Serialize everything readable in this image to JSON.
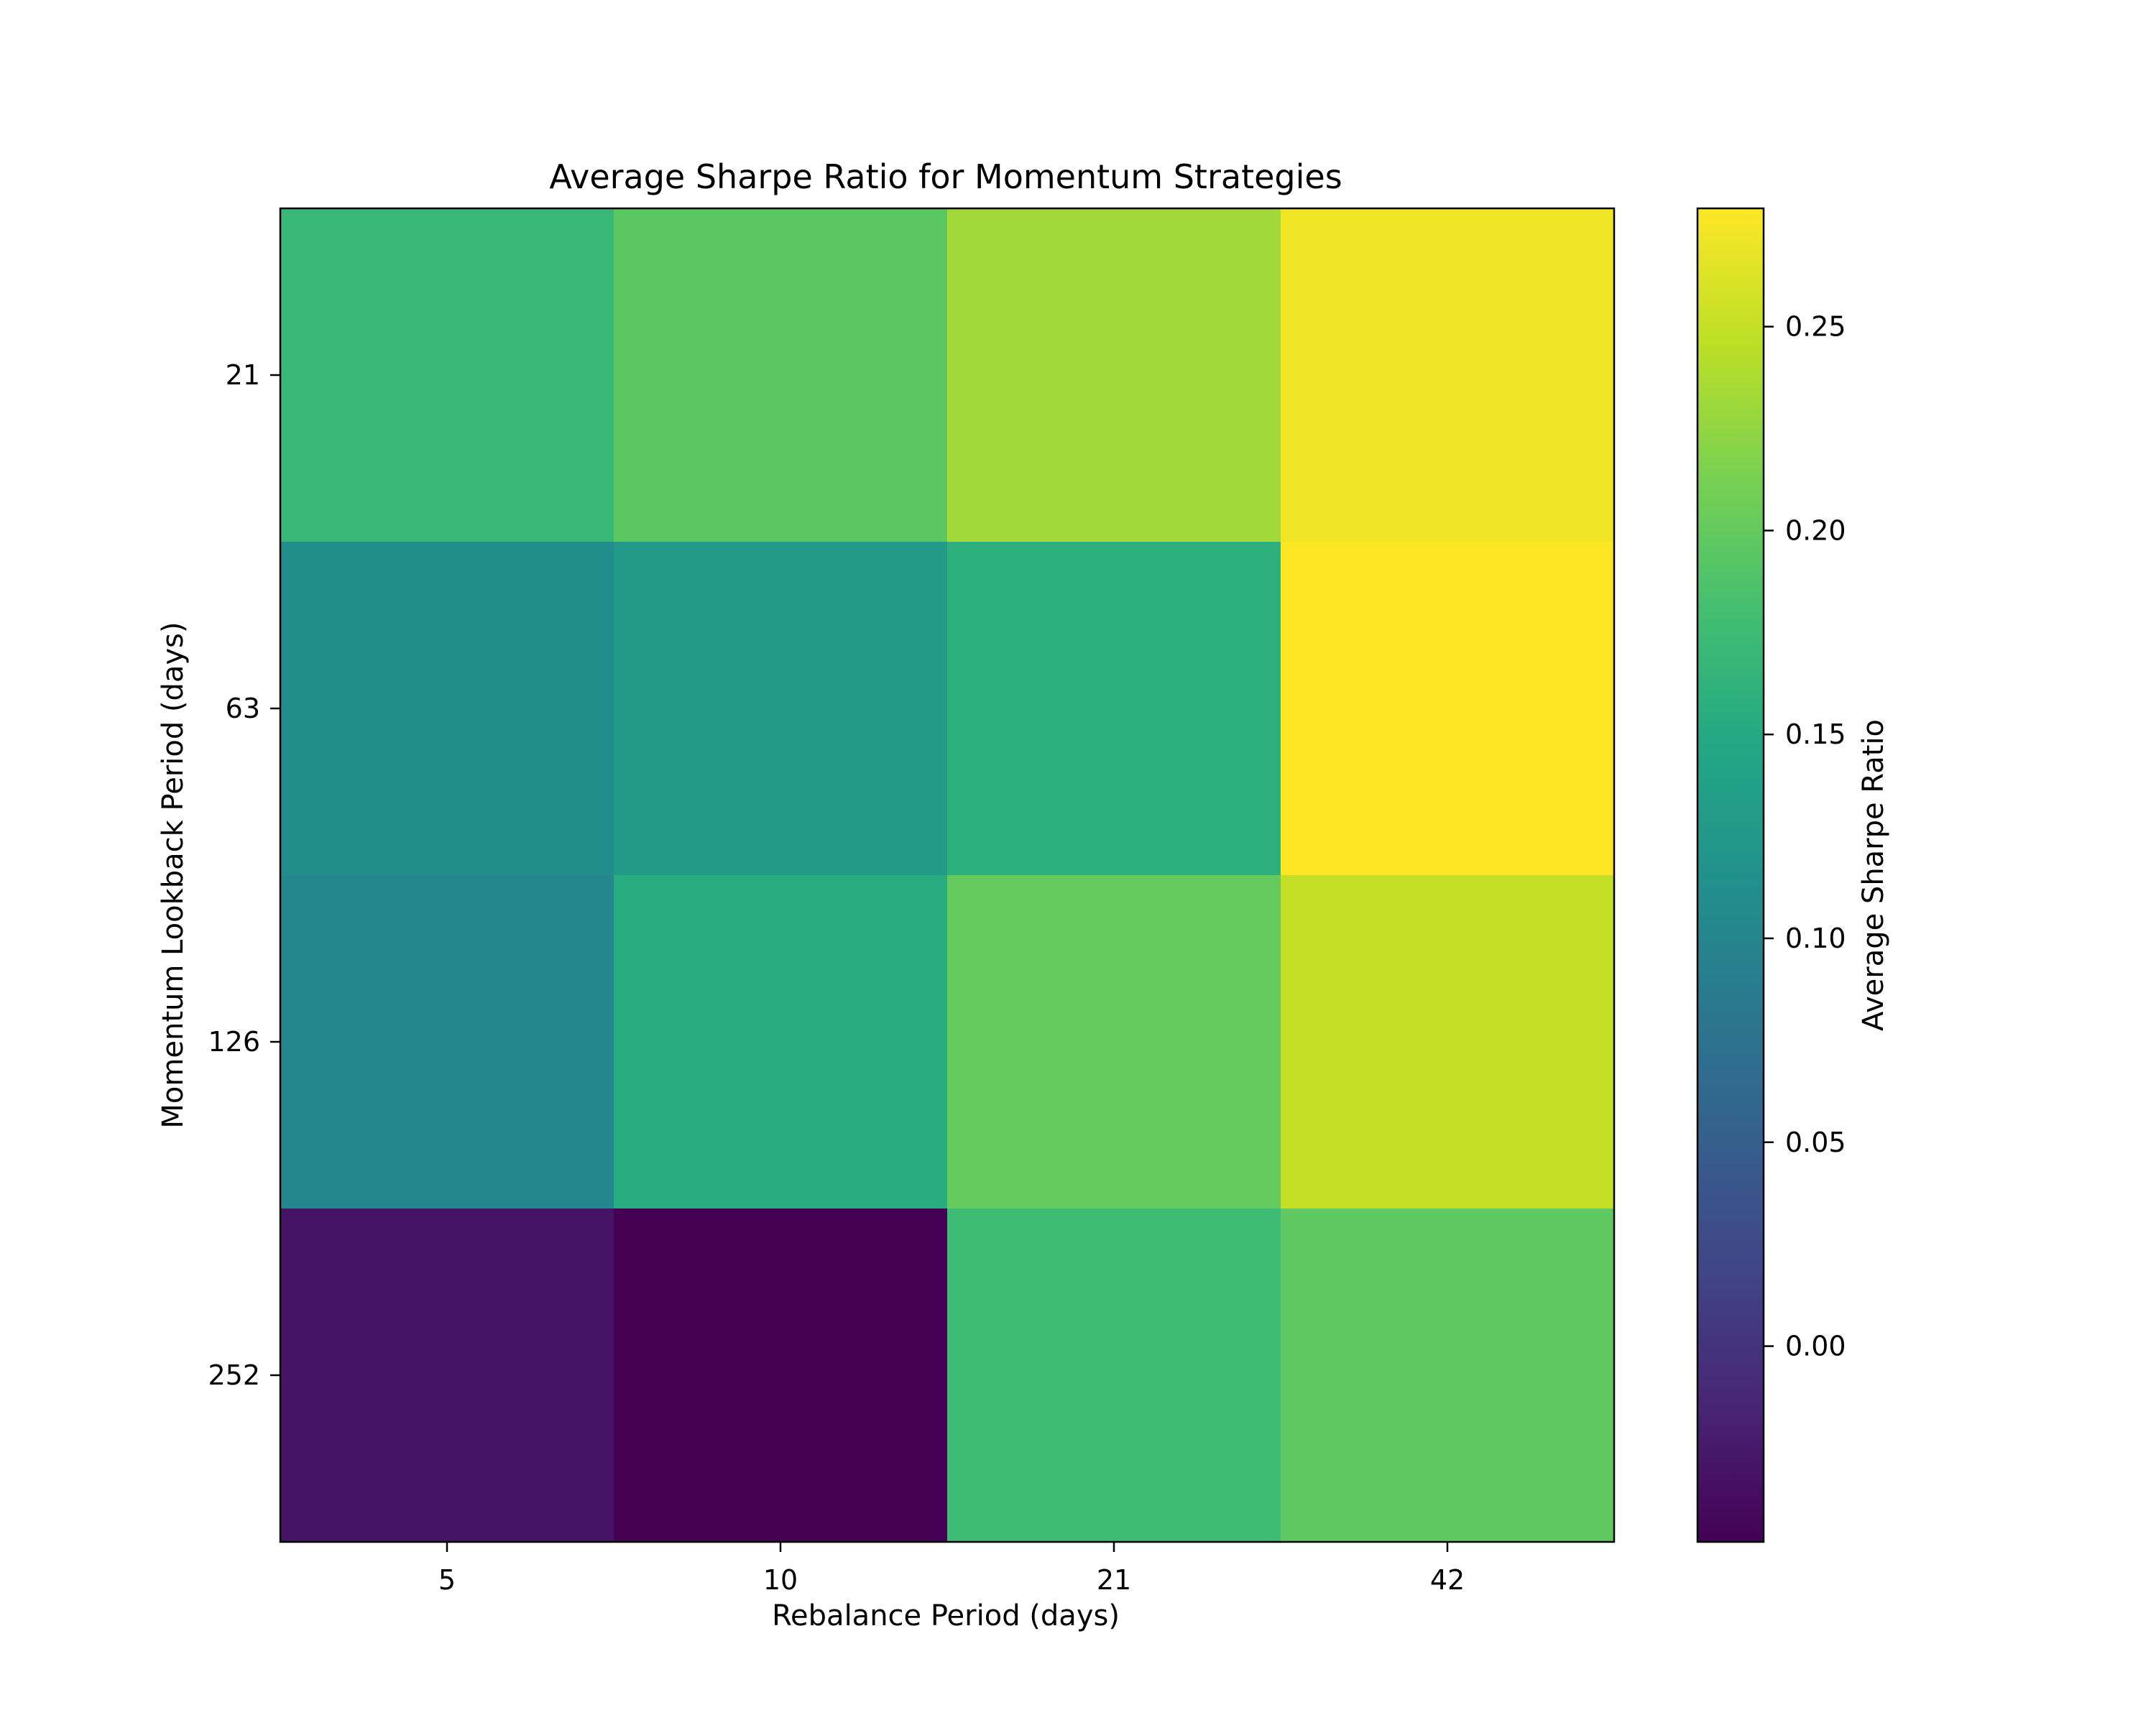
{
  "chart_data": {
    "type": "heatmap",
    "title": "Average Sharpe Ratio for Momentum Strategies",
    "xlabel": "Rebalance Period (days)",
    "ylabel": "Momentum Lookback Period (days)",
    "x_categories": [
      "5",
      "10",
      "21",
      "42"
    ],
    "y_categories": [
      "21",
      "63",
      "126",
      "252"
    ],
    "values": [
      [
        0.17,
        0.195,
        0.232,
        0.273
      ],
      [
        0.112,
        0.128,
        0.16,
        0.279
      ],
      [
        0.103,
        0.155,
        0.2,
        0.25
      ],
      [
        -0.03,
        -0.048,
        0.175,
        0.198
      ]
    ],
    "colorbar": {
      "label": "Average Sharpe Ratio",
      "range": [
        -0.048,
        0.279
      ],
      "ticks": [
        "0.00",
        "0.05",
        "0.10",
        "0.15",
        "0.20",
        "0.25"
      ],
      "colormap": "viridis"
    },
    "grid": false
  }
}
